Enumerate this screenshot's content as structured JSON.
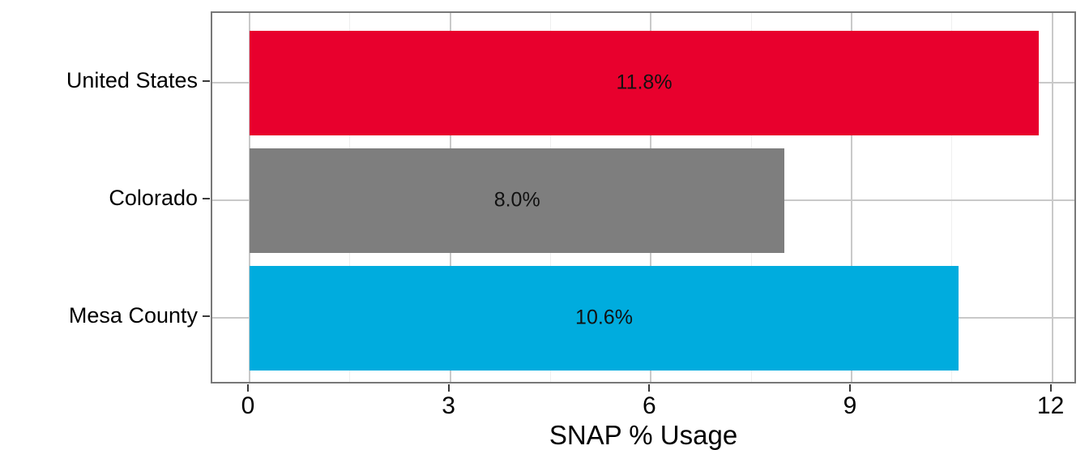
{
  "chart_data": {
    "type": "bar",
    "orientation": "horizontal",
    "title": "",
    "xlabel": "SNAP % Usage",
    "ylabel": "",
    "categories": [
      "United States",
      "Colorado",
      "Mesa County"
    ],
    "values": [
      11.8,
      8.0,
      10.6
    ],
    "bar_labels": [
      "11.8%",
      "8.0%",
      "10.6%"
    ],
    "bar_colors": [
      "#E8002D",
      "#7E7E7E",
      "#00ACDE"
    ],
    "x_ticks": [
      "0",
      "3",
      "6",
      "9",
      "12"
    ],
    "x_tick_values": [
      0,
      3,
      6,
      9,
      12
    ],
    "x_minor_tick_values": [
      1.5,
      4.5,
      7.5,
      10.5
    ],
    "xlim": [
      0,
      12
    ],
    "grid": "major-vertical-and-horizontal-with-faint-minor",
    "legend": "none",
    "theme": {
      "panel_background": "#FFFFFF",
      "panel_border": "#787878",
      "grid_major": "#C9C9C9",
      "grid_minor": "#EFEFEF",
      "tick_color": "#3A3A3A",
      "text_color": "#000000",
      "bar_label_color": "#111111"
    }
  }
}
